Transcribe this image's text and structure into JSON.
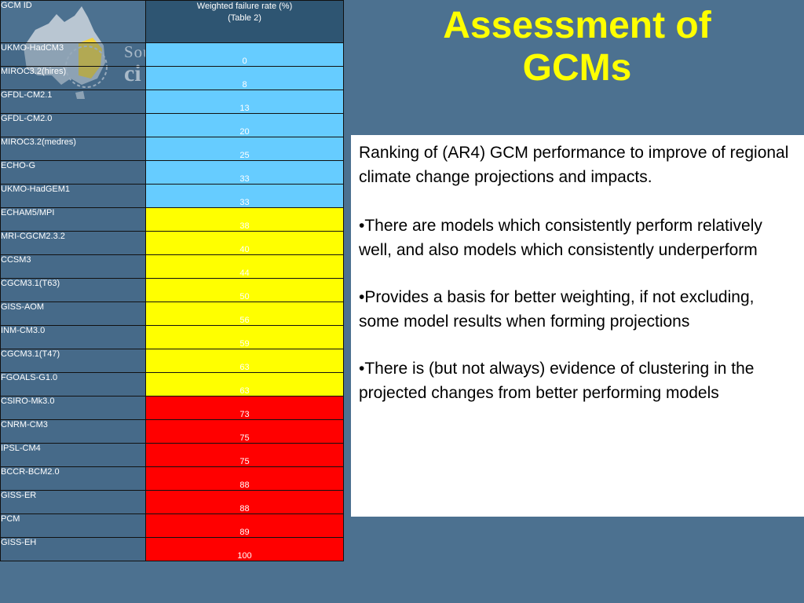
{
  "slide": {
    "title_lines": [
      "Assessment of",
      "GCMs"
    ],
    "logo": {
      "line1": "Sou",
      "line2": "ci",
      "icon": "australia-map-icon"
    },
    "colors": {
      "background": "#4c7190",
      "title": "#ffff00",
      "good": "#66ccff",
      "medium": "#ffff00",
      "poor": "#ff0000"
    }
  },
  "table": {
    "header_model": "GCM ID",
    "header_rate_line1": "Weighted failure rate (%)",
    "header_rate_line2": "(Table 2)",
    "rows": [
      {
        "model": "UKMO-HadCM3",
        "rate": "0",
        "band": "blue"
      },
      {
        "model": "MIROC3.2(hires)",
        "rate": "8",
        "band": "blue"
      },
      {
        "model": "GFDL-CM2.1",
        "rate": "13",
        "band": "blue"
      },
      {
        "model": "GFDL-CM2.0",
        "rate": "20",
        "band": "blue"
      },
      {
        "model": "MIROC3.2(medres)",
        "rate": "25",
        "band": "blue"
      },
      {
        "model": "ECHO-G",
        "rate": "33",
        "band": "blue"
      },
      {
        "model": "UKMO-HadGEM1",
        "rate": "33",
        "band": "blue"
      },
      {
        "model": "ECHAM5/MPI",
        "rate": "38",
        "band": "yellow"
      },
      {
        "model": "MRI-CGCM2.3.2",
        "rate": "40",
        "band": "yellow"
      },
      {
        "model": "CCSM3",
        "rate": "44",
        "band": "yellow"
      },
      {
        "model": "CGCM3.1(T63)",
        "rate": "50",
        "band": "yellow"
      },
      {
        "model": "GISS-AOM",
        "rate": "56",
        "band": "yellow"
      },
      {
        "model": "INM-CM3.0",
        "rate": "59",
        "band": "yellow"
      },
      {
        "model": "CGCM3.1(T47)",
        "rate": "63",
        "band": "yellow"
      },
      {
        "model": "FGOALS-G1.0",
        "rate": "63",
        "band": "yellow"
      },
      {
        "model": "CSIRO-Mk3.0",
        "rate": "73",
        "band": "red"
      },
      {
        "model": "CNRM-CM3",
        "rate": "75",
        "band": "red"
      },
      {
        "model": "IPSL-CM4",
        "rate": "75",
        "band": "red"
      },
      {
        "model": "BCCR-BCM2.0",
        "rate": "88",
        "band": "red"
      },
      {
        "model": "GISS-ER",
        "rate": "88",
        "band": "red"
      },
      {
        "model": "PCM",
        "rate": "89",
        "band": "red"
      },
      {
        "model": "GISS-EH",
        "rate": "100",
        "band": "red"
      }
    ]
  },
  "textbox": {
    "intro": "Ranking of (AR4) GCM performance to improve of regional climate change projections and impacts.",
    "bullet1": "•There are models which consistently perform relatively well, and also models which consistently underperform",
    "bullet2": "•Provides a basis for better weighting, if not excluding, some model results when forming projections",
    "bullet3": "•There is (but not always) evidence of clustering in the projected changes from better performing models"
  }
}
